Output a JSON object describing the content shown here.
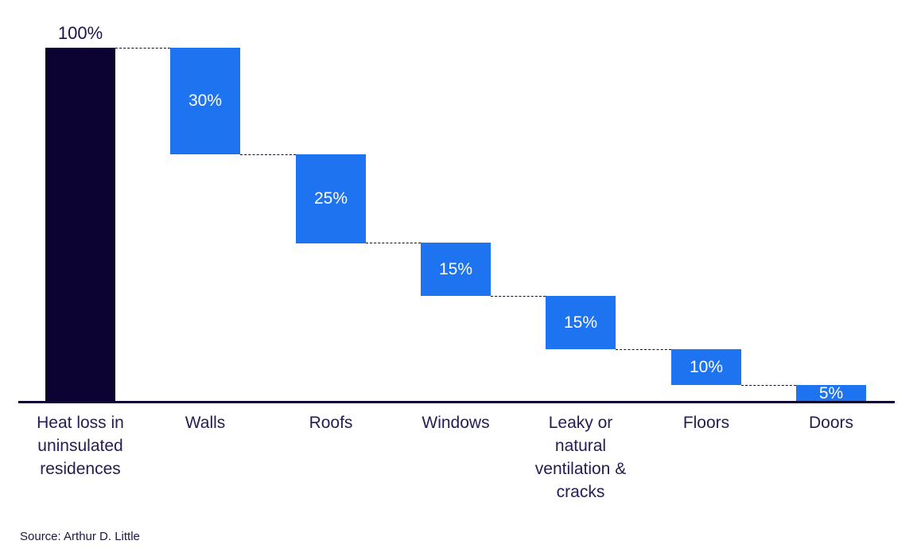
{
  "chart_data": {
    "type": "bar",
    "subtype": "waterfall",
    "title": "",
    "categories": [
      "Heat loss in uninsulated residences",
      "Walls",
      "Roofs",
      "Windows",
      "Leaky or natural ventilation & cracks",
      "Floors",
      "Doors"
    ],
    "values": [
      100,
      30,
      25,
      15,
      15,
      10,
      5
    ],
    "bar_roles": [
      "total",
      "decrease",
      "decrease",
      "decrease",
      "decrease",
      "decrease",
      "decrease"
    ],
    "bar_labels": [
      "100%",
      "30%",
      "25%",
      "15%",
      "15%",
      "10%",
      "5%"
    ],
    "running_levels_after_each_bar": [
      100,
      70,
      45,
      30,
      15,
      5,
      0
    ],
    "xlabel": "",
    "ylabel": "",
    "ylim": [
      0,
      100
    ],
    "grid": false,
    "legend": false,
    "connector_style": "dashed",
    "colors": {
      "total_bar": "#0D0333",
      "decrease_bar": "#1D73F0",
      "value_text_inside": "#FFFFFF",
      "total_value_text": "#1A1548",
      "axis_line": "#0D0333",
      "axis_label_text": "#221D54",
      "connector": "#101028"
    }
  },
  "source_note": "Source: Arthur D. Little"
}
